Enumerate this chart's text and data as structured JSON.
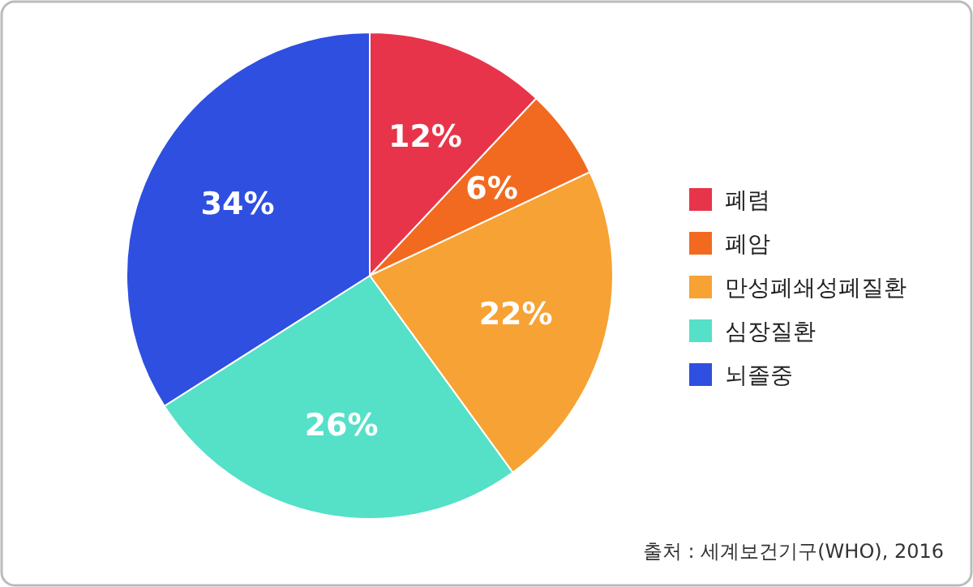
{
  "chart_data": {
    "type": "pie",
    "categories": [
      "폐렴",
      "폐암",
      "만성폐쇄성폐질환",
      "심장질환",
      "뇌졸중"
    ],
    "values": [
      12,
      6,
      22,
      26,
      34
    ],
    "colors": [
      "#e8344a",
      "#f26a1f",
      "#f7a234",
      "#55e0c8",
      "#2e4fe0"
    ],
    "value_labels": [
      "12%",
      "6%",
      "22%",
      "26%",
      "34%"
    ],
    "legend": "right",
    "annotations": [
      "출처 : 세계보건기구(WHO), 2016"
    ]
  }
}
